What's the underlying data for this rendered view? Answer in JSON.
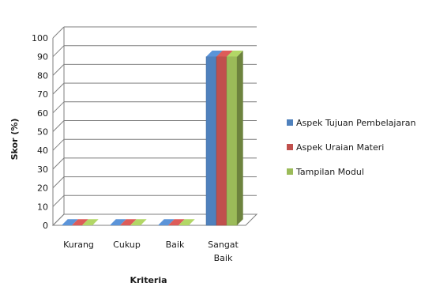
{
  "chart_data": {
    "type": "bar",
    "variant": "3d-clustered-column",
    "title": "",
    "xlabel": "Kriteria",
    "ylabel": "Skor (%)",
    "ylim": [
      0,
      100
    ],
    "yticks": [
      0,
      10,
      20,
      30,
      40,
      50,
      60,
      70,
      80,
      90,
      100
    ],
    "grid": true,
    "legend_position": "right",
    "categories": [
      "Kurang",
      "Cukup",
      "Baik",
      "Sangat Baik"
    ],
    "series": [
      {
        "name": "Aspek Tujuan Pembelajaran",
        "color": "#4F81BD",
        "values": [
          0,
          0,
          0,
          90
        ]
      },
      {
        "name": "Aspek Uraian Materi",
        "color": "#C0504D",
        "values": [
          0,
          0,
          0,
          90
        ]
      },
      {
        "name": "Tampilan Modul",
        "color": "#9BBB59",
        "values": [
          0,
          0,
          0,
          90
        ]
      }
    ]
  }
}
